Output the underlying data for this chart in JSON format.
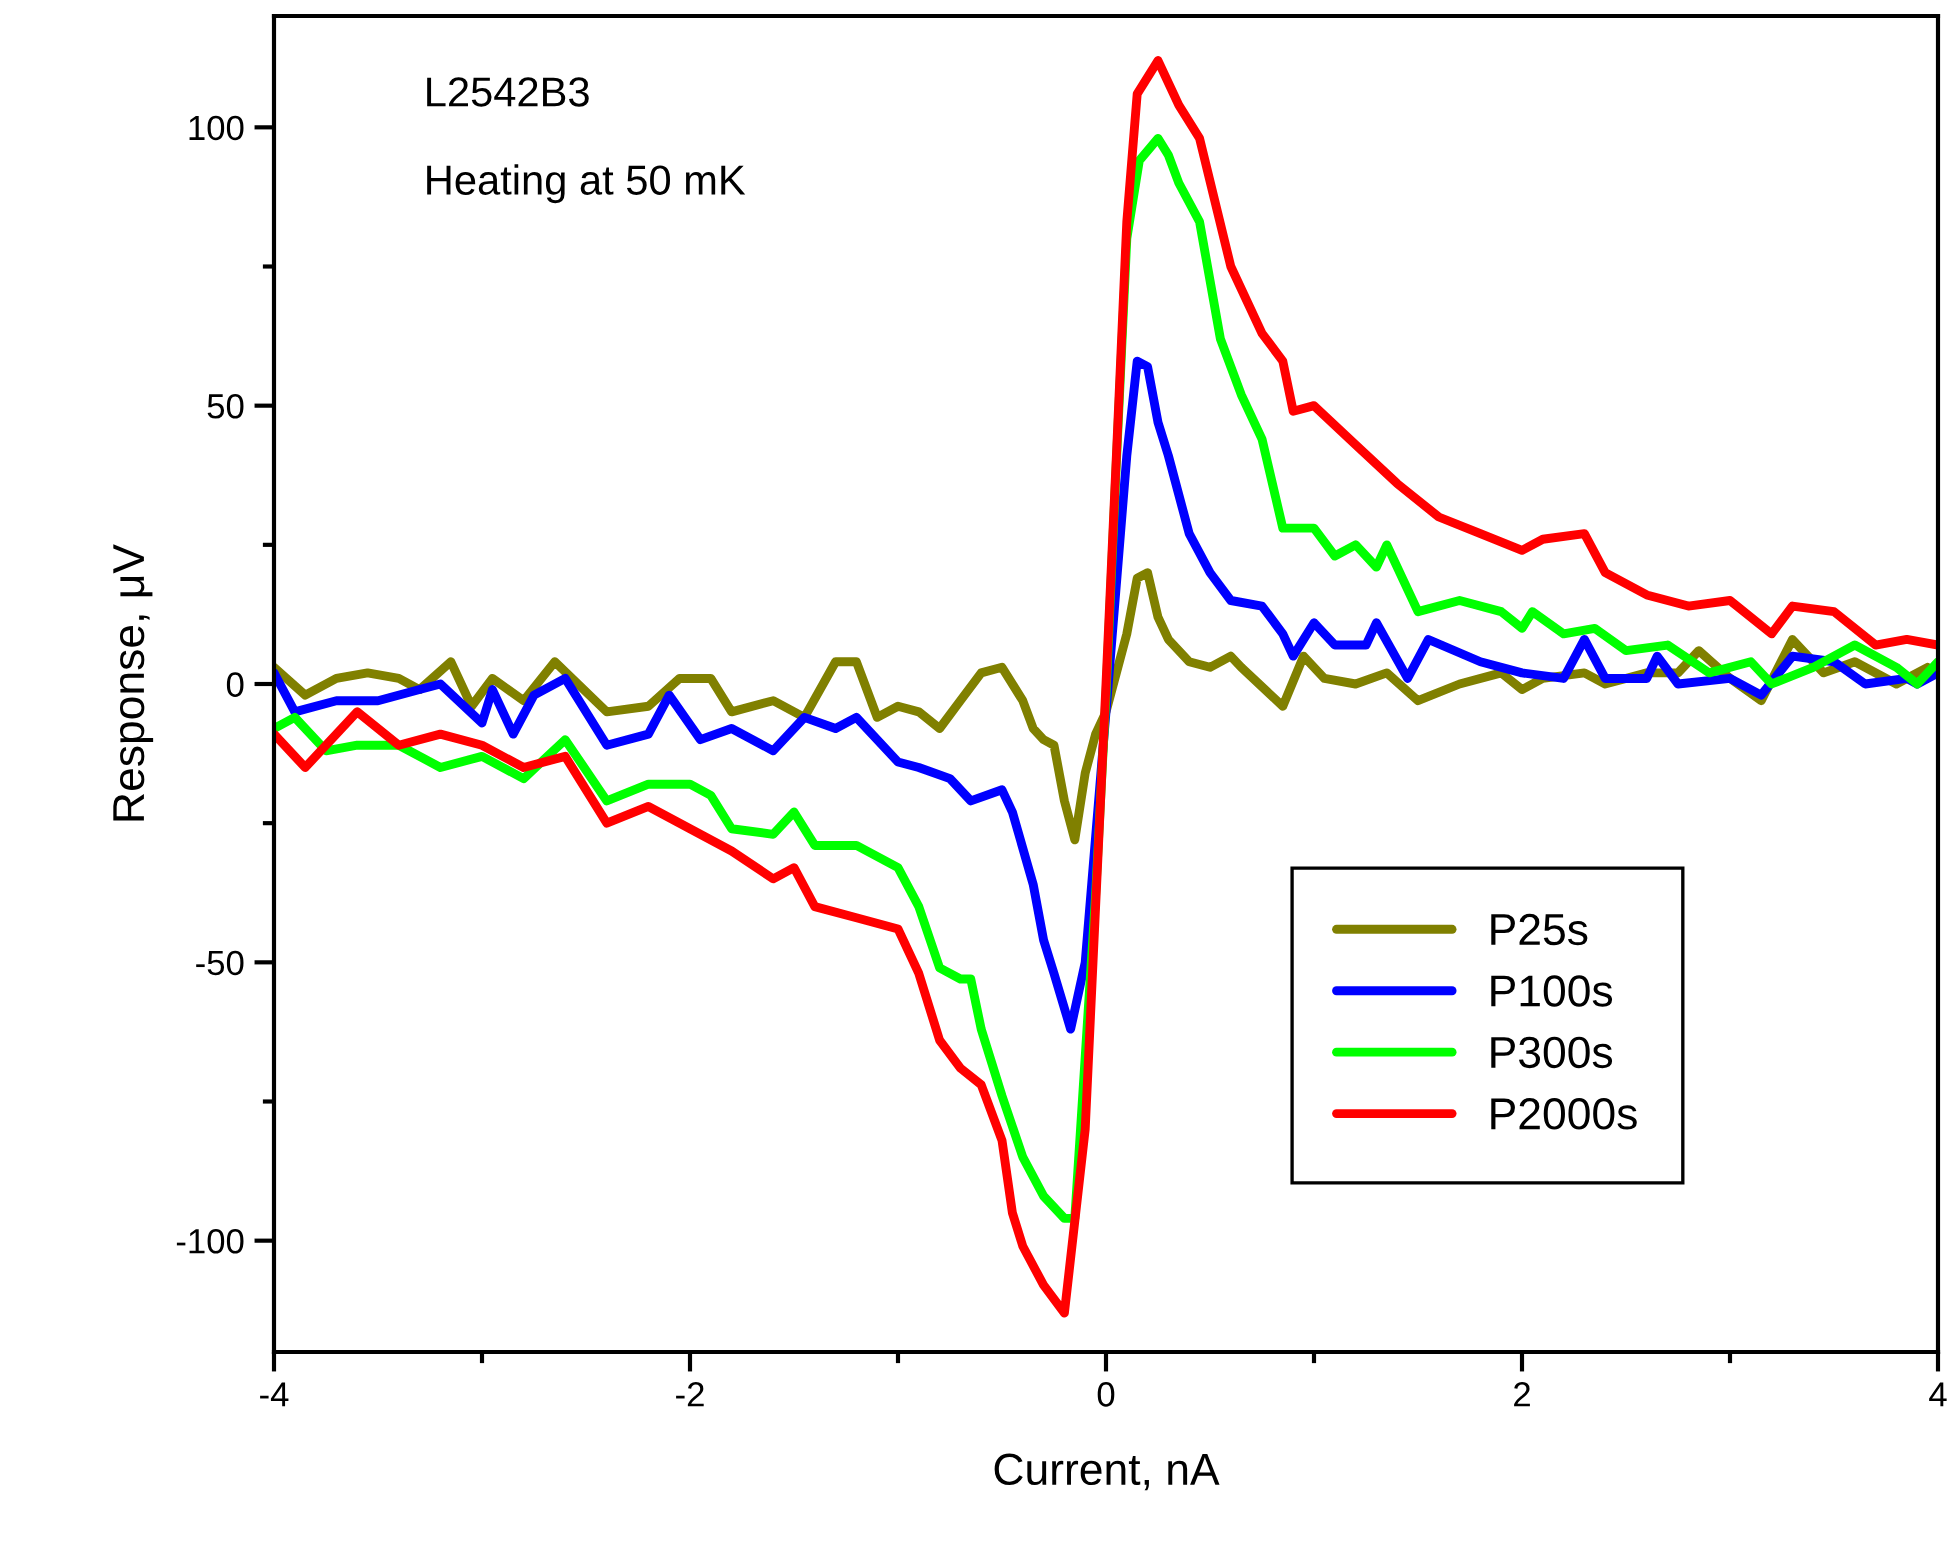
{
  "chart_data": {
    "type": "line",
    "xlabel": "Current, nA",
    "ylabel": "Response, μV",
    "annotations": [
      "L2542B3",
      "Heating at 50 mK"
    ],
    "xlim": [
      -4,
      4
    ],
    "xticks": [
      -4,
      -2,
      0,
      2,
      4
    ],
    "ylim": [
      -120,
      120
    ],
    "yticks": [
      -100,
      -50,
      0,
      50,
      100
    ],
    "grid": false,
    "legend": "lower right",
    "marker": "none",
    "line_style": "solid",
    "series": [
      {
        "name": "P25s",
        "color": "#808000",
        "x": [
          -4,
          -3.85,
          -3.7,
          -3.55,
          -3.4,
          -3.3,
          -3.15,
          -3.05,
          -2.95,
          -2.8,
          -2.65,
          -2.4,
          -2.2,
          -2.05,
          -1.9,
          -1.8,
          -1.6,
          -1.45,
          -1.3,
          -1.2,
          -1.1,
          -1.0,
          -0.9,
          -0.8,
          -0.7,
          -0.6,
          -0.5,
          -0.4,
          -0.35,
          -0.3,
          -0.25,
          -0.2,
          -0.15,
          -0.1,
          -0.05,
          0,
          0.05,
          0.1,
          0.15,
          0.2,
          0.25,
          0.3,
          0.4,
          0.5,
          0.6,
          0.65,
          0.85,
          0.95,
          1.05,
          1.2,
          1.35,
          1.5,
          1.7,
          1.9,
          2.0,
          2.1,
          2.3,
          2.4,
          2.6,
          2.75,
          2.85,
          3.0,
          3.15,
          3.3,
          3.45,
          3.6,
          3.8,
          3.95,
          4
        ],
        "values": [
          3,
          -2,
          1,
          2,
          1,
          -1,
          4,
          -4,
          1,
          -3,
          4,
          -5,
          -4,
          1,
          1,
          -5,
          -3,
          -6,
          4,
          4,
          -6,
          -4,
          -5,
          -8,
          -3,
          2,
          3,
          -3,
          -8,
          -10,
          -11,
          -21,
          -28,
          -16,
          -9,
          -5,
          2,
          9,
          19,
          20,
          12,
          8,
          4,
          3,
          5,
          3,
          -4,
          5,
          1,
          0,
          2,
          -3,
          0,
          2,
          -1,
          1,
          2,
          0,
          2,
          2,
          6,
          1,
          -3,
          8,
          2,
          4,
          0,
          3,
          2
        ]
      },
      {
        "name": "P100s",
        "color": "#0000ff",
        "x": [
          -4,
          -3.9,
          -3.7,
          -3.5,
          -3.3,
          -3.2,
          -3.0,
          -2.95,
          -2.85,
          -2.75,
          -2.6,
          -2.4,
          -2.2,
          -2.1,
          -1.95,
          -1.8,
          -1.6,
          -1.45,
          -1.3,
          -1.2,
          -1.0,
          -0.9,
          -0.75,
          -0.65,
          -0.5,
          -0.45,
          -0.35,
          -0.3,
          -0.25,
          -0.17,
          -0.1,
          0,
          0.05,
          0.1,
          0.15,
          0.2,
          0.25,
          0.3,
          0.4,
          0.5,
          0.6,
          0.75,
          0.85,
          0.9,
          1.0,
          1.1,
          1.25,
          1.3,
          1.45,
          1.55,
          1.8,
          2.0,
          2.2,
          2.3,
          2.4,
          2.6,
          2.65,
          2.75,
          3.0,
          3.15,
          3.3,
          3.5,
          3.65,
          3.85,
          3.9,
          4
        ],
        "values": [
          2,
          -5,
          -3,
          -3,
          -1,
          0,
          -7,
          -1,
          -9,
          -2,
          1,
          -11,
          -9,
          -2,
          -10,
          -8,
          -12,
          -6,
          -8,
          -6,
          -14,
          -15,
          -17,
          -21,
          -19,
          -23,
          -36,
          -46,
          -52,
          -62,
          -50,
          -5,
          18,
          41,
          58,
          57,
          47,
          41,
          27,
          20,
          15,
          14,
          9,
          5,
          11,
          7,
          7,
          11,
          1,
          8,
          4,
          2,
          1,
          8,
          1,
          1,
          5,
          0,
          1,
          -2,
          5,
          4,
          0,
          1,
          0,
          2
        ]
      },
      {
        "name": "P300s",
        "color": "#00ff00",
        "x": [
          -4,
          -3.9,
          -3.75,
          -3.6,
          -3.4,
          -3.2,
          -3.0,
          -2.8,
          -2.6,
          -2.4,
          -2.2,
          -2.0,
          -1.9,
          -1.8,
          -1.6,
          -1.5,
          -1.4,
          -1.2,
          -1.0,
          -0.9,
          -0.8,
          -0.7,
          -0.65,
          -0.6,
          -0.5,
          -0.4,
          -0.3,
          -0.2,
          -0.15,
          -0.05,
          0,
          0.05,
          0.1,
          0.16,
          0.25,
          0.3,
          0.35,
          0.45,
          0.55,
          0.65,
          0.75,
          0.85,
          1.0,
          1.1,
          1.2,
          1.3,
          1.35,
          1.5,
          1.7,
          1.9,
          2.0,
          2.05,
          2.2,
          2.35,
          2.5,
          2.7,
          2.9,
          3.1,
          3.2,
          3.4,
          3.6,
          3.8,
          3.9,
          4
        ],
        "values": [
          -8,
          -6,
          -12,
          -11,
          -11,
          -15,
          -13,
          -17,
          -10,
          -21,
          -18,
          -18,
          -20,
          -26,
          -27,
          -23,
          -29,
          -29,
          -33,
          -40,
          -51,
          -53,
          -53,
          -62,
          -74,
          -85,
          -92,
          -96,
          -96,
          -38,
          -2,
          40,
          80,
          94,
          98,
          95,
          90,
          83,
          62,
          52,
          44,
          28,
          28,
          23,
          25,
          21,
          25,
          13,
          15,
          13,
          10,
          13,
          9,
          10,
          6,
          7,
          2,
          4,
          0,
          3,
          7,
          3,
          0,
          4
        ]
      },
      {
        "name": "P2000s",
        "color": "#ff0000",
        "x": [
          -4,
          -3.85,
          -3.6,
          -3.4,
          -3.2,
          -3.0,
          -2.8,
          -2.6,
          -2.4,
          -2.2,
          -2.0,
          -1.8,
          -1.6,
          -1.5,
          -1.4,
          -1.2,
          -1.0,
          -0.9,
          -0.8,
          -0.7,
          -0.6,
          -0.5,
          -0.45,
          -0.4,
          -0.3,
          -0.2,
          -0.1,
          0,
          0.05,
          0.1,
          0.15,
          0.25,
          0.35,
          0.45,
          0.6,
          0.75,
          0.85,
          0.9,
          1.0,
          1.2,
          1.4,
          1.6,
          1.8,
          2.0,
          2.1,
          2.3,
          2.4,
          2.6,
          2.8,
          3.0,
          3.2,
          3.3,
          3.5,
          3.7,
          3.85,
          4
        ],
        "values": [
          -9,
          -15,
          -5,
          -11,
          -9,
          -11,
          -15,
          -13,
          -25,
          -22,
          -26,
          -30,
          -35,
          -33,
          -40,
          -42,
          -44,
          -52,
          -64,
          -69,
          -72,
          -82,
          -95,
          -101,
          -108,
          -113,
          -80,
          0,
          41,
          83,
          106,
          112,
          104,
          98,
          75,
          63,
          58,
          49,
          50,
          43,
          36,
          30,
          27,
          24,
          26,
          27,
          20,
          16,
          14,
          15,
          9,
          14,
          13,
          7,
          8,
          7
        ]
      }
    ]
  }
}
